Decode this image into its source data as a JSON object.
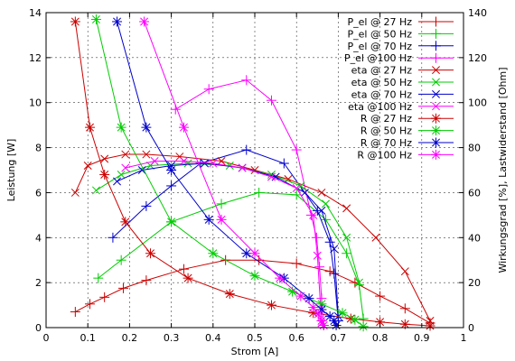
{
  "chart_data": {
    "type": "line",
    "xlabel": "Strom [A]",
    "ylabel": "Leistung [W]",
    "y2label": "Wirkungsgrad [%], Lastwiderstand [Ohm]",
    "xlim": [
      0,
      1
    ],
    "ylim": [
      0,
      14
    ],
    "y2lim": [
      0,
      140
    ],
    "xticks": [
      "0",
      "0.1",
      "0.2",
      "0.3",
      "0.4",
      "0.5",
      "0.6",
      "0.7",
      "0.8",
      "0.9",
      "1"
    ],
    "yticks": [
      "0",
      "2",
      "4",
      "6",
      "8",
      "10",
      "12",
      "14"
    ],
    "y2ticks": [
      "0",
      "20",
      "40",
      "60",
      "80",
      "100",
      "120",
      "140"
    ],
    "grid": true,
    "legend_position": "top-right",
    "colors": {
      "27": "#cc0000",
      "50": "#00cc00",
      "70": "#0000cc",
      "100": "#ff00ff"
    },
    "series": [
      {
        "name": "P_el @ 27 Hz",
        "color": "#cc0000",
        "marker": "plus",
        "axis": "y",
        "x": [
          0.07,
          0.105,
          0.14,
          0.185,
          0.24,
          0.33,
          0.43,
          0.51,
          0.6,
          0.68,
          0.74,
          0.8,
          0.86,
          0.92
        ],
        "y": [
          0.7,
          1.05,
          1.35,
          1.75,
          2.1,
          2.6,
          3.0,
          3.0,
          2.85,
          2.5,
          2.0,
          1.4,
          0.85,
          0.2
        ]
      },
      {
        "name": "P_el @ 50 Hz",
        "color": "#00cc00",
        "marker": "plus",
        "axis": "y",
        "x": [
          0.125,
          0.18,
          0.3,
          0.42,
          0.51,
          0.6,
          0.67,
          0.72,
          0.75,
          0.76
        ],
        "y": [
          2.2,
          3.0,
          4.7,
          5.5,
          6.0,
          5.9,
          4.8,
          3.3,
          1.9,
          0.4
        ]
      },
      {
        "name": "P_el @ 70 Hz",
        "color": "#0000cc",
        "marker": "plus",
        "axis": "y",
        "x": [
          0.16,
          0.24,
          0.3,
          0.37,
          0.48,
          0.57,
          0.65,
          0.68,
          0.69,
          0.7
        ],
        "y": [
          4.0,
          5.4,
          6.3,
          7.3,
          7.9,
          7.3,
          5.2,
          3.8,
          2.4,
          0.3
        ]
      },
      {
        "name": "P_el @100 Hz",
        "color": "#ff00ff",
        "marker": "plus",
        "axis": "y",
        "x": [
          0.31,
          0.39,
          0.48,
          0.54,
          0.6,
          0.635,
          0.648,
          0.655,
          0.66,
          0.665
        ],
        "y": [
          9.7,
          10.6,
          11.0,
          10.1,
          7.9,
          5.0,
          4.0,
          2.7,
          1.3,
          0.1
        ]
      },
      {
        "name": "eta @ 27 Hz",
        "color": "#cc0000",
        "marker": "x",
        "axis": "y2",
        "x": [
          0.07,
          0.1,
          0.14,
          0.19,
          0.24,
          0.32,
          0.42,
          0.5,
          0.58,
          0.66,
          0.72,
          0.79,
          0.86,
          0.92
        ],
        "y": [
          60,
          72,
          75,
          77,
          77,
          76,
          74,
          70,
          66,
          60,
          53,
          40,
          25,
          3
        ]
      },
      {
        "name": "eta @ 50 Hz",
        "color": "#00cc00",
        "marker": "x",
        "axis": "y2",
        "x": [
          0.12,
          0.18,
          0.25,
          0.34,
          0.44,
          0.54,
          0.61,
          0.67,
          0.72,
          0.75
        ],
        "y": [
          61,
          68,
          72,
          73,
          72,
          68,
          63,
          55,
          40,
          20
        ]
      },
      {
        "name": "eta @ 70 Hz",
        "color": "#0000cc",
        "marker": "x",
        "axis": "y2",
        "x": [
          0.17,
          0.23,
          0.3,
          0.38,
          0.47,
          0.55,
          0.62,
          0.66,
          0.69,
          0.7
        ],
        "y": [
          65,
          70,
          72,
          73,
          71,
          67,
          60,
          52,
          35,
          5
        ]
      },
      {
        "name": "eta @100 Hz",
        "color": "#ff00ff",
        "marker": "x",
        "axis": "y2",
        "x": [
          0.19,
          0.26,
          0.33,
          0.4,
          0.47,
          0.54,
          0.6,
          0.64,
          0.65,
          0.66
        ],
        "y": [
          71,
          74,
          74,
          73,
          71,
          67,
          62,
          50,
          32,
          2
        ]
      },
      {
        "name": "R @ 27 Hz",
        "color": "#cc0000",
        "marker": "star",
        "axis": "y2",
        "x": [
          0.07,
          0.105,
          0.14,
          0.19,
          0.25,
          0.34,
          0.44,
          0.54,
          0.64,
          0.73,
          0.8,
          0.86,
          0.92
        ],
        "y": [
          136,
          89,
          68,
          47,
          33,
          22,
          15,
          10,
          6.5,
          4,
          2.5,
          1.5,
          0.8
        ]
      },
      {
        "name": "R @ 50 Hz",
        "color": "#00cc00",
        "marker": "star",
        "axis": "y2",
        "x": [
          0.12,
          0.18,
          0.3,
          0.4,
          0.5,
          0.59,
          0.66,
          0.71,
          0.74,
          0.76
        ],
        "y": [
          137,
          89,
          47,
          33,
          23,
          16,
          10.5,
          6.5,
          3.5,
          0.5
        ]
      },
      {
        "name": "R @ 70 Hz",
        "color": "#0000cc",
        "marker": "star",
        "axis": "y2",
        "x": [
          0.17,
          0.24,
          0.3,
          0.39,
          0.48,
          0.57,
          0.63,
          0.66,
          0.68,
          0.69,
          0.695
        ],
        "y": [
          136,
          89,
          70,
          48,
          33,
          22,
          13,
          8,
          5,
          3,
          1
        ]
      },
      {
        "name": "R @100 Hz",
        "color": "#ff00ff",
        "marker": "star",
        "axis": "y2",
        "x": [
          0.235,
          0.33,
          0.42,
          0.5,
          0.56,
          0.61,
          0.64,
          0.652,
          0.66,
          0.665
        ],
        "y": [
          136,
          89,
          48,
          33,
          22,
          14,
          9,
          6,
          3,
          1
        ]
      }
    ]
  }
}
